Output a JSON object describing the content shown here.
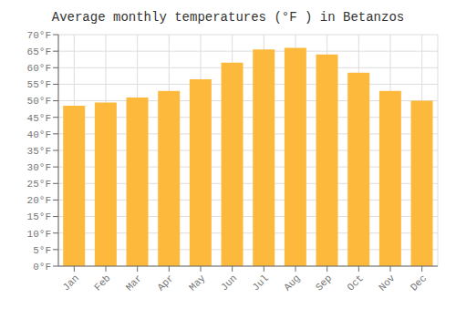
{
  "chart_data": {
    "type": "bar",
    "title": "Average monthly temperatures (°F ) in Betanzos",
    "categories": [
      "Jan",
      "Feb",
      "Mar",
      "Apr",
      "May",
      "Jun",
      "Jul",
      "Aug",
      "Sep",
      "Oct",
      "Nov",
      "Dec"
    ],
    "values": [
      48.5,
      49.5,
      51.0,
      53.0,
      56.5,
      61.5,
      65.5,
      66.0,
      64.0,
      58.5,
      53.0,
      50.0
    ],
    "color": "#FDB93B",
    "ylim": [
      0,
      70
    ],
    "yticks": [
      {
        "value": 0,
        "label": "0°F"
      },
      {
        "value": 5,
        "label": "5°F"
      },
      {
        "value": 10,
        "label": "10°F"
      },
      {
        "value": 15,
        "label": "15°F"
      },
      {
        "value": 20,
        "label": "20°F"
      },
      {
        "value": 25,
        "label": "25°F"
      },
      {
        "value": 30,
        "label": "30°F"
      },
      {
        "value": 35,
        "label": "35°F"
      },
      {
        "value": 40,
        "label": "40°F"
      },
      {
        "value": 45,
        "label": "45°F"
      },
      {
        "value": 50,
        "label": "50°F"
      },
      {
        "value": 55,
        "label": "55°F"
      },
      {
        "value": 60,
        "label": "60°F"
      },
      {
        "value": 65,
        "label": "65°F"
      },
      {
        "value": 70,
        "label": "70°F"
      }
    ],
    "grid": true
  }
}
